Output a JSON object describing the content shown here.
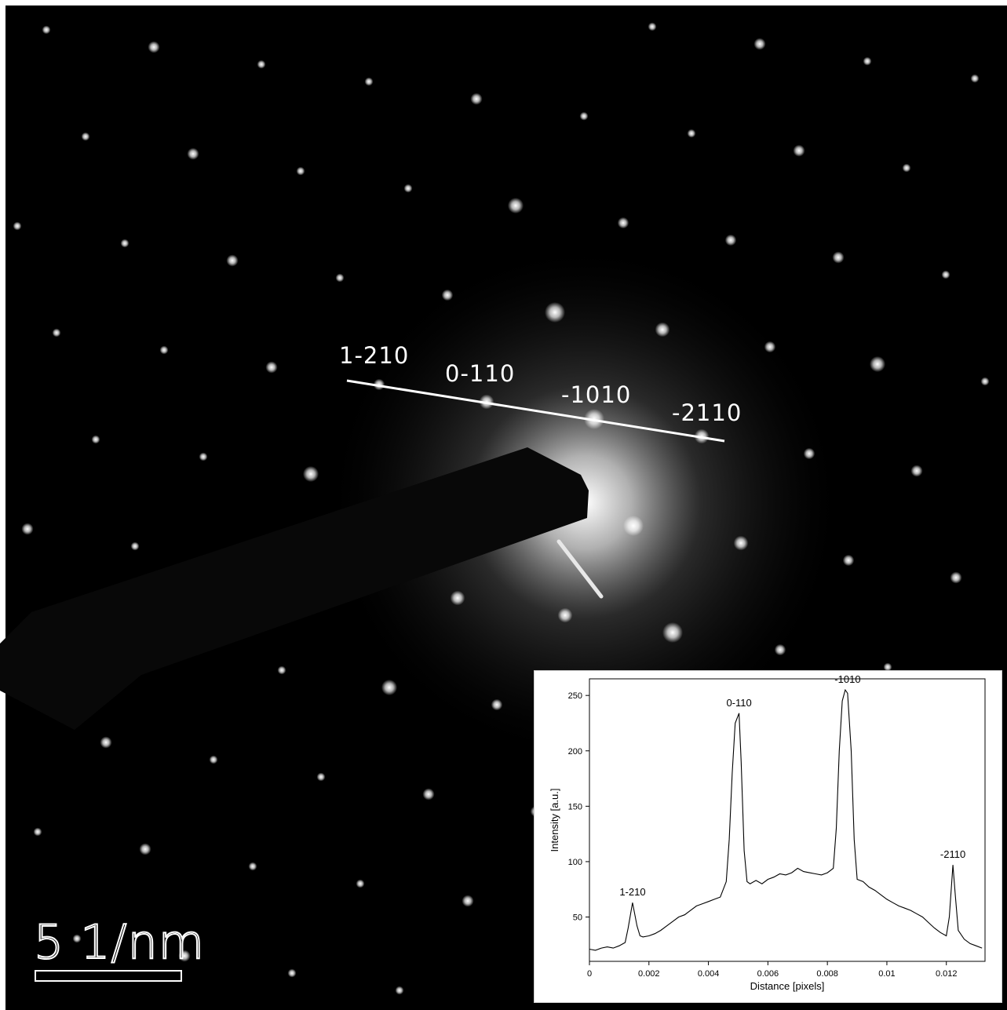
{
  "pattern": {
    "spot_labels": [
      "1-210",
      "0-110",
      "-1010",
      "-2110"
    ]
  },
  "scale_bar": {
    "label": "5  1/nm"
  },
  "chart_data": {
    "type": "line",
    "xlabel": "Distance [pixels]",
    "ylabel": "Intensity [a.u.]",
    "xlim": [
      0,
      0.0133
    ],
    "ylim": [
      10,
      265
    ],
    "xticks": [
      "0",
      "0.002",
      "0.004",
      "0.006",
      "0.008",
      "0.01",
      "0.012"
    ],
    "yticks": [
      "50",
      "100",
      "150",
      "200",
      "250"
    ],
    "grid": false,
    "annotations": [
      {
        "text": "1-210",
        "x": 0.00145,
        "y": 63
      },
      {
        "text": "0-110",
        "x": 0.00503,
        "y": 234
      },
      {
        "text": "-1010",
        "x": 0.00868,
        "y": 255
      },
      {
        "text": "-2110",
        "x": 0.01222,
        "y": 97
      }
    ],
    "series": [
      {
        "x": [
          0,
          0.0002,
          0.0004,
          0.0006,
          0.0008,
          0.001,
          0.0012,
          0.0013,
          0.00145,
          0.0016,
          0.0017,
          0.0018,
          0.002,
          0.0022,
          0.0024,
          0.0026,
          0.0028,
          0.003,
          0.0032,
          0.0034,
          0.0036,
          0.0038,
          0.004,
          0.0042,
          0.0044,
          0.0046,
          0.0047,
          0.0048,
          0.0049,
          0.00503,
          0.0051,
          0.0052,
          0.0053,
          0.0054,
          0.0056,
          0.0058,
          0.006,
          0.0062,
          0.0064,
          0.0066,
          0.0068,
          0.007,
          0.0072,
          0.0074,
          0.0076,
          0.0078,
          0.008,
          0.0082,
          0.0083,
          0.0084,
          0.0085,
          0.0086,
          0.00868,
          0.0088,
          0.0089,
          0.009,
          0.0092,
          0.0094,
          0.0096,
          0.0098,
          0.01,
          0.0102,
          0.0104,
          0.0106,
          0.0108,
          0.011,
          0.0112,
          0.0114,
          0.0116,
          0.0118,
          0.012,
          0.0121,
          0.01222,
          0.0123,
          0.0124,
          0.0126,
          0.0128,
          0.013,
          0.0132
        ],
        "values": [
          21,
          20,
          22,
          23,
          22,
          24,
          27,
          40,
          63,
          42,
          33,
          32,
          33,
          35,
          38,
          42,
          46,
          50,
          52,
          56,
          60,
          62,
          64,
          66,
          68,
          82,
          120,
          180,
          225,
          234,
          190,
          110,
          82,
          80,
          83,
          80,
          84,
          86,
          89,
          88,
          90,
          94,
          91,
          90,
          89,
          88,
          90,
          94,
          130,
          200,
          245,
          255,
          252,
          200,
          120,
          84,
          82,
          77,
          74,
          70,
          66,
          63,
          60,
          58,
          56,
          53,
          50,
          45,
          40,
          36,
          33,
          50,
          97,
          70,
          38,
          30,
          26,
          24,
          22
        ]
      }
    ]
  }
}
